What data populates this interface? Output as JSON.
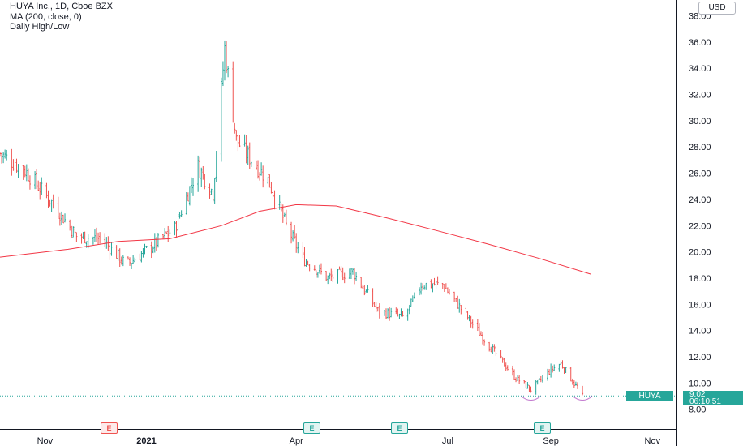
{
  "legend": {
    "symbol": "HUYA Inc., 1D, Cboe BZX",
    "ma": "MA (200, close, 0)",
    "high_low": "Daily High/Low"
  },
  "currency_button": "USD",
  "last_price": {
    "ticker": "HUYA",
    "price": "9.02",
    "countdown": "06:10:51"
  },
  "colors": {
    "up": "#26a69a",
    "down": "#ef5350",
    "ma": "#f23645",
    "price_line": "#26a69a"
  },
  "chart_data": {
    "type": "line",
    "y_axis": {
      "ticks": [
        "8.00",
        "10.00",
        "12.00",
        "14.00",
        "16.00",
        "18.00",
        "20.00",
        "22.00",
        "24.00",
        "26.00",
        "28.00",
        "30.00",
        "32.00",
        "34.00",
        "36.00",
        "38.00"
      ],
      "range": [
        6.5,
        39.2
      ],
      "side": "right"
    },
    "x_axis": {
      "ticks": [
        "Nov",
        "2021",
        "Apr",
        "Jul",
        "Sep",
        "Nov"
      ],
      "bold": [
        "2021"
      ],
      "range": [
        "2020-10-05",
        "2021-11-15"
      ]
    },
    "series": [
      {
        "kind": "ohlc",
        "points": [
          {
            "date": "2020-10-05",
            "close": 27.5
          },
          {
            "date": "2020-10-20",
            "close": 26.2
          },
          {
            "date": "2020-11-05",
            "close": 23.8
          },
          {
            "date": "2020-11-20",
            "close": 21.2
          },
          {
            "date": "2020-12-05",
            "close": 21.0
          },
          {
            "date": "2020-12-20",
            "close": 19.0
          },
          {
            "date": "2021-01-05",
            "close": 20.5
          },
          {
            "date": "2021-01-18",
            "close": 21.8
          },
          {
            "date": "2021-02-01",
            "close": 26.5
          },
          {
            "date": "2021-02-10",
            "close": 24.5
          },
          {
            "date": "2021-02-17",
            "close": 35.5
          },
          {
            "date": "2021-02-24",
            "close": 28.5
          },
          {
            "date": "2021-03-05",
            "close": 27.0
          },
          {
            "date": "2021-03-15",
            "close": 25.5
          },
          {
            "date": "2021-03-26",
            "close": 22.0
          },
          {
            "date": "2021-04-05",
            "close": 19.5
          },
          {
            "date": "2021-04-20",
            "close": 18.0
          },
          {
            "date": "2021-05-05",
            "close": 18.5
          },
          {
            "date": "2021-05-20",
            "close": 15.5
          },
          {
            "date": "2021-06-05",
            "close": 15.0
          },
          {
            "date": "2021-06-15",
            "close": 17.5
          },
          {
            "date": "2021-06-28",
            "close": 17.5
          },
          {
            "date": "2021-07-10",
            "close": 15.5
          },
          {
            "date": "2021-07-25",
            "close": 13.0
          },
          {
            "date": "2021-08-10",
            "close": 10.5
          },
          {
            "date": "2021-08-20",
            "close": 9.5
          },
          {
            "date": "2021-09-01",
            "close": 11.0
          },
          {
            "date": "2021-09-07",
            "close": 11.5
          },
          {
            "date": "2021-09-20",
            "close": 9.0
          }
        ]
      },
      {
        "kind": "ma",
        "points": [
          {
            "date": "2020-10-05",
            "value": 19.6
          },
          {
            "date": "2020-11-15",
            "value": 20.2
          },
          {
            "date": "2020-12-15",
            "value": 20.8
          },
          {
            "date": "2021-01-15",
            "value": 21.0
          },
          {
            "date": "2021-02-15",
            "value": 22.0
          },
          {
            "date": "2021-03-10",
            "value": 23.1
          },
          {
            "date": "2021-04-01",
            "value": 23.6
          },
          {
            "date": "2021-04-25",
            "value": 23.5
          },
          {
            "date": "2021-05-25",
            "value": 22.6
          },
          {
            "date": "2021-06-25",
            "value": 21.6
          },
          {
            "date": "2021-07-25",
            "value": 20.6
          },
          {
            "date": "2021-08-25",
            "value": 19.5
          },
          {
            "date": "2021-09-25",
            "value": 18.3
          }
        ]
      }
    ],
    "last_price_line": 9.02,
    "earnings_markers": [
      {
        "date": "2020-11-15",
        "label": "E",
        "color": "red"
      },
      {
        "date": "2021-03-23",
        "label": "E",
        "color": "green"
      },
      {
        "date": "2021-05-20",
        "label": "E",
        "color": "green"
      },
      {
        "date": "2021-08-15",
        "label": "E",
        "color": "green"
      }
    ],
    "grid": false,
    "legend_position": "top-left"
  }
}
